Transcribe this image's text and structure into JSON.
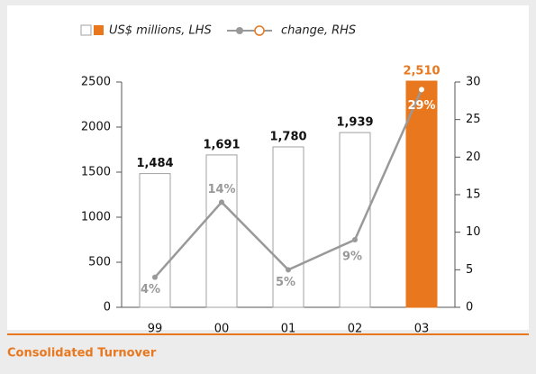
{
  "chart_data": {
    "type": "bar_line",
    "title": "Consolidated Turnover",
    "categories": [
      "99",
      "00",
      "01",
      "02",
      "03"
    ],
    "series": [
      {
        "name": "US$ millions, LHS",
        "type": "bar",
        "axis": "y",
        "values": [
          1484,
          1691,
          1780,
          1939,
          2510
        ],
        "value_labels": [
          "1,484",
          "1,691",
          "1,780",
          "1,939",
          "2,510"
        ],
        "colors": [
          "#ffffff",
          "#ffffff",
          "#ffffff",
          "#ffffff",
          "#e8771e"
        ],
        "edge_color": "#a0a0a0",
        "label_colors": [
          "#111111",
          "#111111",
          "#111111",
          "#111111",
          "#e8771e"
        ]
      },
      {
        "name": "change, RHS",
        "type": "line",
        "axis": "y2",
        "values": [
          4,
          14,
          5,
          9,
          29
        ],
        "value_labels": [
          "4%",
          "14%",
          "5%",
          "9%",
          "29%"
        ],
        "color": "#999999"
      }
    ],
    "ylim": [
      0,
      2500
    ],
    "yticks": [
      0,
      500,
      1000,
      1500,
      2000,
      2500
    ],
    "y2lim": [
      0,
      30
    ],
    "y2ticks": [
      0,
      5,
      10,
      15,
      20,
      25,
      30
    ],
    "accent_color": "#e8771e"
  }
}
